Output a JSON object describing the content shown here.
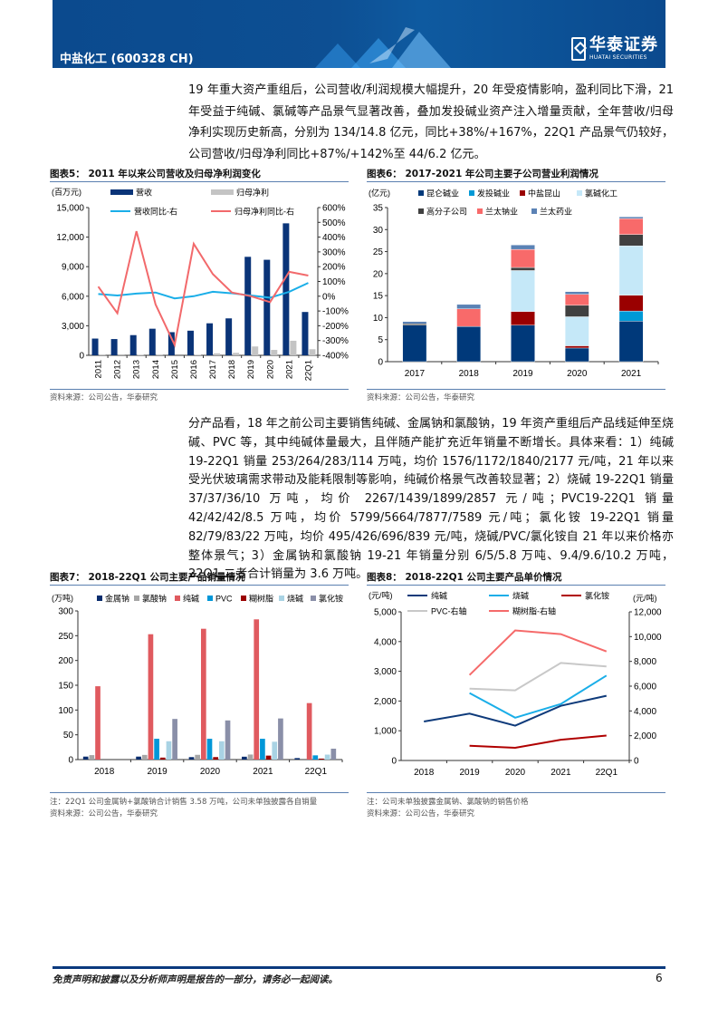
{
  "header": {
    "ticker": "中盐化工 (600328 CH)",
    "logo_cn": "华泰证券",
    "logo_en": "HUATAI SECURITIES",
    "color": "#0b4a8e"
  },
  "body": {
    "p1": "19 年重大资产重组后，公司营收/利润规模大幅提升，20 年受疫情影响，盈利同比下滑，21 年受益于纯碱、氯碱等产品景气显著改善，叠加发投碱业资产注入增量贡献，全年营收/归母净利实现历史新高，分别为 134/14.8 亿元，同比+38%/+167%，22Q1 产品景气仍较好，公司营收/归母净利同比+87%/+142%至 44/6.2 亿元。",
    "p2": "分产品看，18 年之前公司主要销售纯碱、金属钠和氯酸钠，19 年资产重组后产品线延伸至烧碱、PVC 等，其中纯碱体量最大，且伴随产能扩充近年销量不断增长。具体来看：1）纯碱 19-22Q1 销量 253/264/283/114 万吨，均价 1576/1172/1840/2177 元/吨，21 年以来受光伏玻璃需求带动及能耗限制等影响，纯碱价格景气改善较显著；2）烧碱 19-22Q1 销量 37/37/36/10 万吨，均价 2267/1439/1899/2857 元/吨；PVC19-22Q1 销量 42/42/42/8.5 万吨，均价 5799/5664/7877/7589 元/吨；氯化铵 19-22Q1 销量 82/79/83/22 万吨，均价 495/426/696/839 元/吨，烧碱/PVC/氯化铵自 21 年以来价格亦整体景气；3）金属钠和氯酸钠 19-21 年销量分别 6/5/5.8 万吨、9.4/9.6/10.2 万吨，22Q1 二者合计销量为 3.6 万吨。"
  },
  "footer": {
    "disclaimer": "免责声明和披露以及分析师声明是报告的一部分，请务必一起阅读。",
    "page": "6"
  },
  "chart_data": [
    {
      "id": "c5",
      "type": "bar+line",
      "title": "图表5：  2011 年以来公司营收及归母净利润变化",
      "ylabel": "(百万元)",
      "ylim": [
        0,
        15000
      ],
      "yticks": [
        "0",
        "3,000",
        "6,000",
        "9,000",
        "12,000",
        "15,000"
      ],
      "y2lim": [
        -400,
        600
      ],
      "y2ticks": [
        "-400%",
        "-300%",
        "-200%",
        "-100%",
        "0%",
        "100%",
        "200%",
        "300%",
        "400%",
        "500%",
        "600%"
      ],
      "categories": [
        "2011",
        "2012",
        "2013",
        "2014",
        "2015",
        "2016",
        "2017",
        "2018",
        "2019",
        "2020",
        "2021",
        "22Q1"
      ],
      "series": [
        {
          "name": "营收",
          "kind": "bar",
          "color": "#0a3478",
          "values": [
            1700,
            1650,
            2050,
            2700,
            2350,
            2500,
            3250,
            3750,
            10000,
            9700,
            13400,
            4400
          ]
        },
        {
          "name": "归母净利",
          "kind": "bar",
          "color": "#c4c4c4",
          "values": [
            30,
            20,
            40,
            30,
            -50,
            60,
            200,
            250,
            900,
            550,
            1480,
            620
          ]
        },
        {
          "name": "营收同比-右",
          "kind": "line",
          "axis": "right",
          "color": "#1aaee8",
          "values": [
            15,
            5,
            18,
            25,
            -15,
            0,
            30,
            20,
            5,
            -10,
            30,
            90
          ]
        },
        {
          "name": "归母净利同比-右",
          "kind": "line",
          "axis": "right",
          "color": "#f2696b",
          "values": [
            65,
            -115,
            440,
            -55,
            -330,
            355,
            150,
            25,
            0,
            -40,
            165,
            140
          ]
        }
      ],
      "notes": [
        "资料来源：公司公告，华泰研究"
      ]
    },
    {
      "id": "c6",
      "type": "stacked-bar",
      "title": "图表6：  2017-2021 年公司主要子公司营业利润情况",
      "ylabel": "(亿元)",
      "ylim": [
        0,
        35
      ],
      "yticks": [
        "0",
        "5",
        "10",
        "15",
        "20",
        "25",
        "30",
        "35"
      ],
      "categories": [
        "2017",
        "2018",
        "2019",
        "2020",
        "2021"
      ],
      "series": [
        {
          "name": "昆仑碱业",
          "color": "#00397a",
          "values": [
            8.3,
            8.0,
            8.3,
            3.1,
            9.2
          ]
        },
        {
          "name": "发投碱业",
          "color": "#0099d6",
          "values": [
            0,
            0,
            0,
            0,
            2.3
          ]
        },
        {
          "name": "中盐昆山",
          "color": "#9a0000",
          "values": [
            0,
            0,
            3.1,
            0.5,
            3.6
          ]
        },
        {
          "name": "氯碱化工",
          "color": "#c5e8f8",
          "values": [
            0,
            0,
            9.3,
            6.6,
            11.2
          ]
        },
        {
          "name": "高分子公司",
          "color": "#404040",
          "values": [
            0.3,
            0,
            0.7,
            2.6,
            2.6
          ]
        },
        {
          "name": "兰太钠业",
          "color": "#f86a6a",
          "values": [
            0,
            4.0,
            4.1,
            2.5,
            3.6
          ]
        },
        {
          "name": "兰太药业",
          "color": "#5b82b5",
          "values": [
            0.5,
            1.0,
            1.0,
            0.6,
            0.4
          ]
        }
      ],
      "notes": [
        "资料来源：公司公告，华泰研究"
      ]
    },
    {
      "id": "c7",
      "type": "bar",
      "title": "图表7：  2018-22Q1 公司主要产品销量情况",
      "ylabel": "(万吨)",
      "ylim": [
        0,
        300
      ],
      "yticks": [
        "0",
        "50",
        "100",
        "150",
        "200",
        "250",
        "300"
      ],
      "categories": [
        "2018",
        "2019",
        "2020",
        "2021",
        "22Q1"
      ],
      "series": [
        {
          "name": "金属钠",
          "color": "#0a2d6e",
          "values": [
            6,
            6,
            5,
            5.8,
            3
          ]
        },
        {
          "name": "氯酸钠",
          "color": "#a6a6a6",
          "values": [
            9,
            9.4,
            9.6,
            10.2,
            0
          ]
        },
        {
          "name": "纯碱",
          "color": "#e05a5f",
          "values": [
            148,
            253,
            264,
            283,
            114
          ]
        },
        {
          "name": "PVC",
          "color": "#0097d8",
          "values": [
            0,
            42,
            42,
            42,
            8.5
          ]
        },
        {
          "name": "糊树脂",
          "color": "#9a0000",
          "values": [
            0,
            4,
            5,
            8,
            2
          ]
        },
        {
          "name": "烧碱",
          "color": "#a9d3e4",
          "values": [
            0,
            37,
            37,
            36,
            10
          ]
        },
        {
          "name": "氯化铵",
          "color": "#8a8fa8",
          "values": [
            0,
            82,
            79,
            83,
            22
          ]
        }
      ],
      "notes": [
        "注：22Q1 公司金属钠+氯酸钠合计销售 3.58 万吨，公司未单独披露各自销量",
        "资料来源：公司公告，华泰研究"
      ]
    },
    {
      "id": "c8",
      "type": "line",
      "title": "图表8：  2018-22Q1 公司主要产品单价情况",
      "ylabel": "(元/吨)",
      "y2label": "(元/吨)",
      "ylim": [
        0,
        5000
      ],
      "yticks": [
        "0",
        "1,000",
        "2,000",
        "3,000",
        "4,000",
        "5,000"
      ],
      "y2lim": [
        0,
        12000
      ],
      "y2ticks": [
        "0",
        "2,000",
        "4,000",
        "6,000",
        "8,000",
        "10,000",
        "12,000"
      ],
      "categories": [
        "2018",
        "2019",
        "2020",
        "2021",
        "22Q1"
      ],
      "series": [
        {
          "name": "纯碱",
          "color": "#0e3a7a",
          "values": [
            1310,
            1576,
            1172,
            1840,
            2177
          ]
        },
        {
          "name": "烧碱",
          "color": "#1aaee8",
          "values": [
            null,
            2267,
            1439,
            1899,
            2857
          ]
        },
        {
          "name": "氯化铵",
          "color": "#b00000",
          "values": [
            null,
            495,
            426,
            696,
            839
          ]
        },
        {
          "name": "PVC-右轴",
          "axis": "right",
          "color": "#c8c8c8",
          "values": [
            null,
            5799,
            5664,
            7877,
            7589
          ]
        },
        {
          "name": "糊树脂-右轴",
          "axis": "right",
          "color": "#f56a6a",
          "values": [
            null,
            6900,
            10500,
            10200,
            8800
          ]
        }
      ],
      "notes": [
        "注：公司未单独披露金属钠、氯酸钠的销售价格",
        "资料来源：公司公告，华泰研究"
      ]
    }
  ]
}
